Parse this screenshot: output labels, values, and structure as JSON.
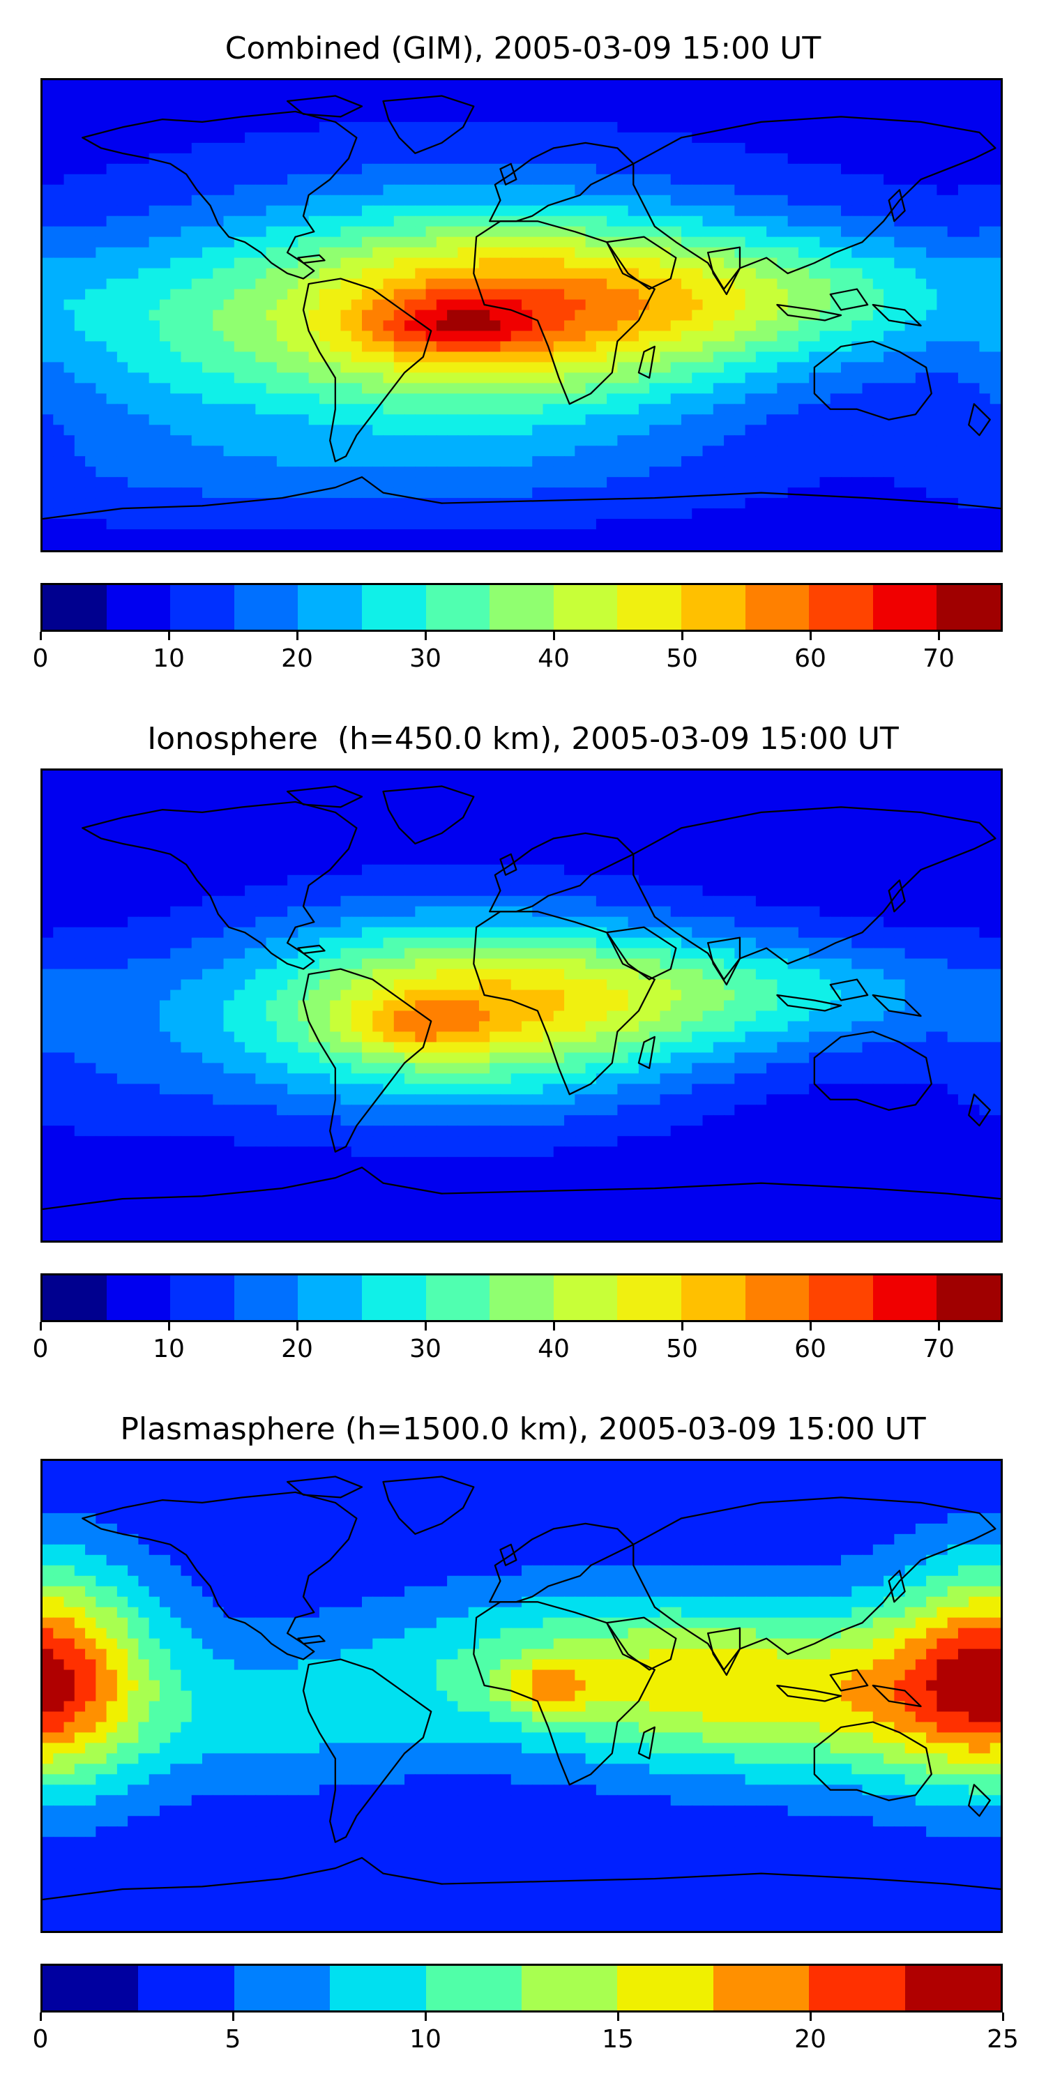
{
  "panels": [
    {
      "title": "Combined (GIM), 2005-03-09 15:00 UT",
      "colorbar": {
        "min": 0,
        "max": 75,
        "step": 5,
        "tick_labels": [
          "0",
          "10",
          "20",
          "30",
          "40",
          "50",
          "60",
          "70"
        ],
        "tick_values": [
          0,
          10,
          20,
          30,
          40,
          50,
          60,
          70
        ]
      },
      "field": {
        "background": 8,
        "blobs": [
          {
            "lon": -20,
            "lat": 0,
            "amp": 46,
            "sx": 75,
            "sy": 30
          },
          {
            "lon": -25,
            "lat": -4,
            "amp": 14,
            "sx": 22,
            "sy": 8
          },
          {
            "lon": 90,
            "lat": 8,
            "amp": 20,
            "sx": 70,
            "sy": 18
          },
          {
            "lon": -140,
            "lat": -20,
            "amp": 7,
            "sx": 40,
            "sy": 30
          },
          {
            "lon": -60,
            "lat": -60,
            "amp": 6,
            "sx": 90,
            "sy": 12
          }
        ]
      }
    },
    {
      "title": "Ionosphere  (h=450.0 km), 2005-03-09 15:00 UT",
      "colorbar": {
        "min": 0,
        "max": 75,
        "step": 5,
        "tick_labels": [
          "0",
          "10",
          "20",
          "30",
          "40",
          "50",
          "60",
          "70"
        ],
        "tick_values": [
          0,
          10,
          20,
          30,
          40,
          50,
          60,
          70
        ]
      },
      "field": {
        "background": 6,
        "blobs": [
          {
            "lon": -25,
            "lat": -2,
            "amp": 40,
            "sx": 65,
            "sy": 26
          },
          {
            "lon": -40,
            "lat": -8,
            "amp": 12,
            "sx": 18,
            "sy": 7
          },
          {
            "lon": 80,
            "lat": 5,
            "amp": 18,
            "sx": 70,
            "sy": 16
          },
          {
            "lon": -160,
            "lat": -25,
            "amp": 5,
            "sx": 40,
            "sy": 25
          }
        ]
      }
    },
    {
      "title": "Plasmasphere (h=1500.0 km), 2005-03-09 15:00 UT",
      "colorbar": {
        "min": 0,
        "max": 25,
        "step": 2.5,
        "tick_labels": [
          "0",
          "5",
          "10",
          "15",
          "20",
          "25"
        ],
        "tick_values": [
          0,
          5,
          10,
          15,
          20,
          25
        ]
      },
      "field": {
        "background": 3,
        "blobs": [
          {
            "lon": 40,
            "lat": 10,
            "amp": 10,
            "sx": 70,
            "sy": 22
          },
          {
            "lon": 10,
            "lat": 3,
            "amp": 6,
            "sx": 12,
            "sy": 7
          },
          {
            "lon": 120,
            "lat": -5,
            "amp": 8,
            "sx": 60,
            "sy": 22
          },
          {
            "lon": -180,
            "lat": 10,
            "amp": 8,
            "sx": 30,
            "sy": 30
          },
          {
            "lon": 180,
            "lat": 10,
            "amp": 8,
            "sx": 30,
            "sy": 30
          },
          {
            "lon": -90,
            "lat": -10,
            "amp": 4,
            "sx": 40,
            "sy": 20
          }
        ]
      }
    }
  ],
  "colors": {
    "jet15": [
      "#00008f",
      "#0000f0",
      "#0030ff",
      "#0070ff",
      "#00b0ff",
      "#10f0e8",
      "#50ffb0",
      "#90ff70",
      "#c8ff38",
      "#f0f010",
      "#ffc000",
      "#ff8000",
      "#ff4400",
      "#f00000",
      "#a00000"
    ],
    "jet10": [
      "#0000a0",
      "#0020ff",
      "#0080ff",
      "#00e0f0",
      "#50ffa8",
      "#a8ff50",
      "#f0f000",
      "#ff9000",
      "#ff3000",
      "#b00000"
    ]
  }
}
